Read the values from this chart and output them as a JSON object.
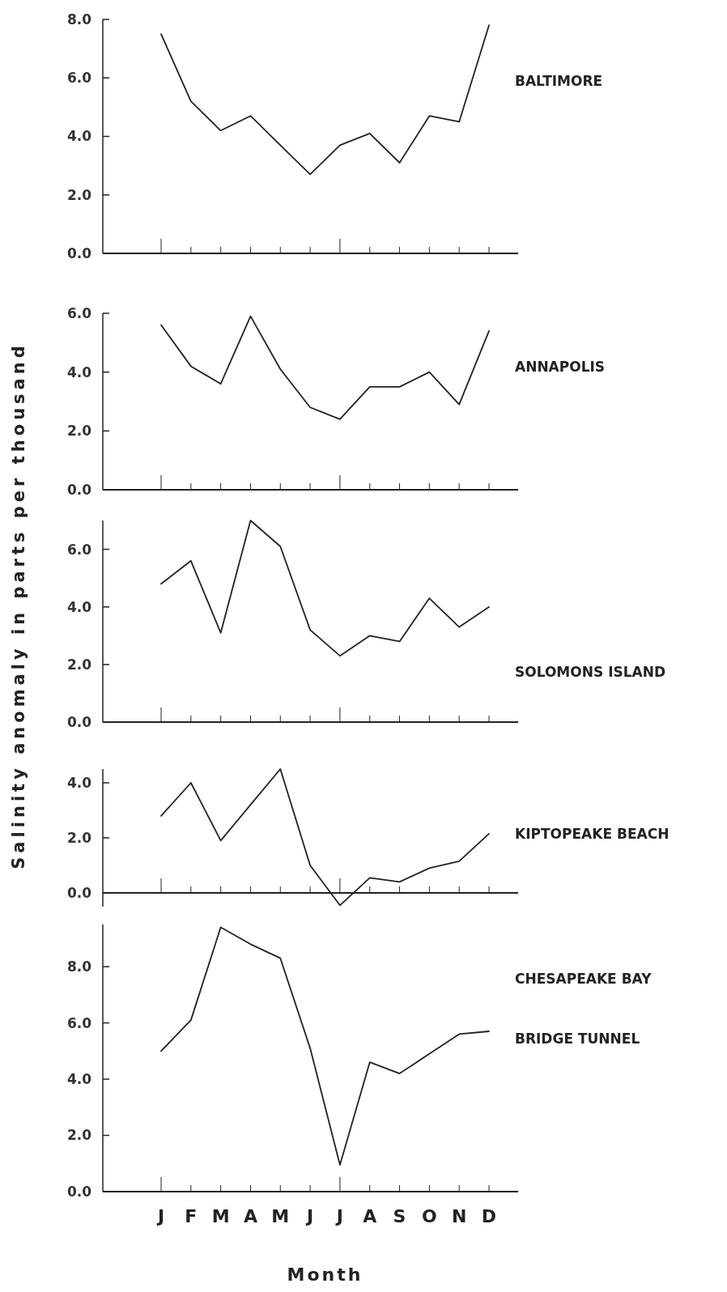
{
  "chart_data": [
    {
      "type": "line",
      "categories": [
        null,
        null,
        null,
        null,
        null,
        null,
        null,
        null,
        null,
        null,
        null,
        null
      ],
      "tick_labels": "y",
      "ylim": [
        0,
        8
      ],
      "yticks": [
        {
          "value": 0,
          "label": "0.0"
        },
        {
          "value": 2,
          "label": "2.0"
        },
        {
          "value": 4,
          "label": "4.0"
        },
        {
          "value": 6,
          "label": "6.0"
        },
        {
          "value": 8,
          "label": "8.0"
        }
      ],
      "series": [
        {
          "name": "BALTIMORE",
          "color": "#222222",
          "values": [
            7.5,
            5.2,
            4.2,
            4.7,
            3.7,
            2.7,
            3.7,
            4.1,
            3.1,
            4.7,
            4.5,
            7.8
          ]
        }
      ]
    },
    {
      "type": "line",
      "categories": [
        null,
        null,
        null,
        null,
        null,
        null,
        null,
        null,
        null,
        null,
        null,
        null
      ],
      "tick_labels": "y",
      "ylim": [
        0,
        6
      ],
      "yticks": [
        {
          "value": 0,
          "label": "0.0"
        },
        {
          "value": 2,
          "label": "2.0"
        },
        {
          "value": 4,
          "label": "4.0"
        },
        {
          "value": 6,
          "label": "6.0"
        }
      ],
      "series": [
        {
          "name": "ANNAPOLIS",
          "color": "#222222",
          "values": [
            5.6,
            4.2,
            3.6,
            5.9,
            4.1,
            2.8,
            2.4,
            3.5,
            3.5,
            4.0,
            2.9,
            5.4
          ]
        }
      ]
    },
    {
      "type": "line",
      "ylabel": "Salinity anomaly in parts per thousand",
      "categories": [
        null,
        null,
        null,
        null,
        null,
        null,
        null,
        null,
        null,
        null,
        null,
        null
      ],
      "tick_labels": "y",
      "ylim": [
        0,
        7
      ],
      "yticks": [
        {
          "value": 0,
          "label": "0.0"
        },
        {
          "value": 2,
          "label": "2.0"
        },
        {
          "value": 4,
          "label": "4.0"
        },
        {
          "value": 6,
          "label": "6.0"
        }
      ],
      "series": [
        {
          "name": "SOLOMONS ISLAND",
          "color": "#222222",
          "values": [
            4.8,
            5.6,
            3.1,
            7.0,
            6.1,
            3.2,
            2.3,
            3.0,
            2.8,
            4.3,
            3.3,
            4.0
          ]
        }
      ]
    },
    {
      "type": "line",
      "categories": [
        null,
        null,
        null,
        null,
        null,
        null,
        null,
        null,
        null,
        null,
        null,
        null
      ],
      "tick_labels": "y",
      "ylim": [
        -0.5,
        4.5
      ],
      "yticks": [
        {
          "value": 0,
          "label": "0.0"
        },
        {
          "value": 2,
          "label": "2.0"
        },
        {
          "value": 4,
          "label": "4.0"
        }
      ],
      "series": [
        {
          "name": "KIPTOPEAKE BEACH",
          "color": "#222222",
          "values": [
            2.8,
            4.0,
            1.9,
            3.2,
            4.5,
            1.0,
            -0.45,
            0.55,
            0.4,
            0.9,
            1.15,
            2.15
          ]
        }
      ]
    },
    {
      "type": "line",
      "xlabel": "Month",
      "categories": [
        "J",
        "F",
        "M",
        "A",
        "M",
        "J",
        "J",
        "A",
        "S",
        "O",
        "N",
        "D"
      ],
      "ylim": [
        0,
        9.5
      ],
      "yticks": [
        {
          "value": 0,
          "label": "0.0"
        },
        {
          "value": 2,
          "label": "2.0"
        },
        {
          "value": 4,
          "label": "4.0"
        },
        {
          "value": 6,
          "label": "6.0"
        },
        {
          "value": 8,
          "label": "8.0"
        }
      ],
      "series": [
        {
          "name": "CHESAPEAKE BAY BRIDGE TUNNEL",
          "color": "#222222",
          "values": [
            5.0,
            6.1,
            9.4,
            8.8,
            8.3,
            5.1,
            0.95,
            4.6,
            4.2,
            4.9,
            5.6,
            5.7
          ]
        }
      ]
    }
  ]
}
